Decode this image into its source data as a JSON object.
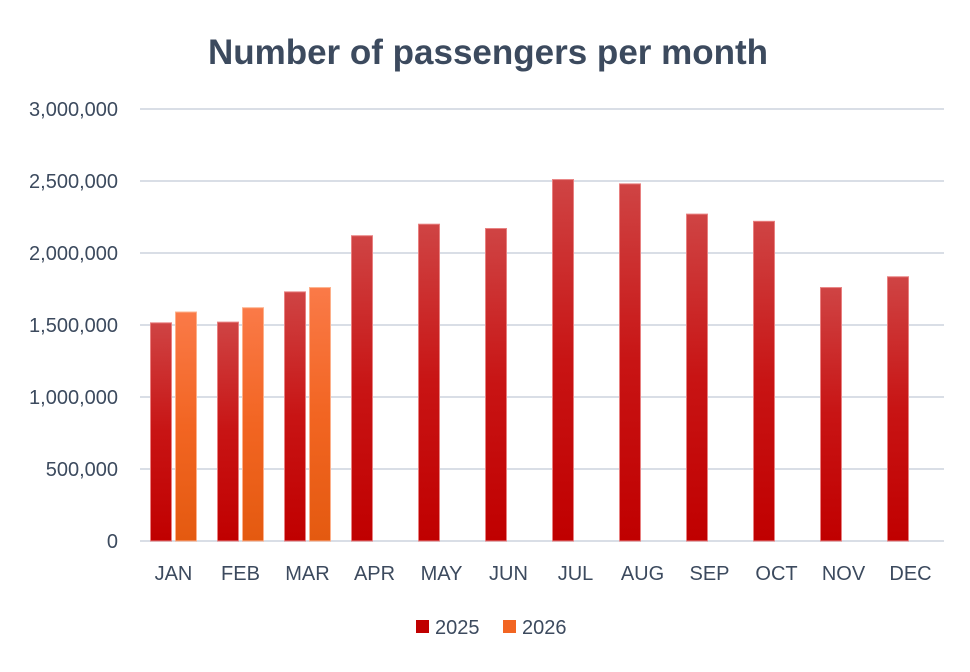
{
  "chart_data": {
    "type": "bar",
    "title": "Number of passengers per month",
    "xlabel": "",
    "ylabel": "",
    "ylim": [
      0,
      3000000
    ],
    "yticks": [
      0,
      500000,
      1000000,
      1500000,
      2000000,
      2500000,
      3000000
    ],
    "ytick_labels": [
      "0",
      "500,000",
      "1,000,000",
      "1,500,000",
      "2,000,000",
      "2,500,000",
      "3,000,000"
    ],
    "grid": true,
    "legend_position": "bottom",
    "categories": [
      "JAN",
      "FEB",
      "MAR",
      "APR",
      "MAY",
      "JUN",
      "JUL",
      "AUG",
      "SEP",
      "OCT",
      "NOV",
      "DEC"
    ],
    "series": [
      {
        "name": "2025",
        "color": "#c00000",
        "values": [
          1515000,
          1520000,
          1730000,
          2120000,
          2200000,
          2170000,
          2510000,
          2480000,
          2270000,
          2220000,
          1760000,
          1835000
        ]
      },
      {
        "name": "2026",
        "color": "#f26522",
        "values": [
          1590000,
          1620000,
          1760000,
          null,
          null,
          null,
          null,
          null,
          null,
          null,
          null,
          null
        ]
      }
    ]
  }
}
